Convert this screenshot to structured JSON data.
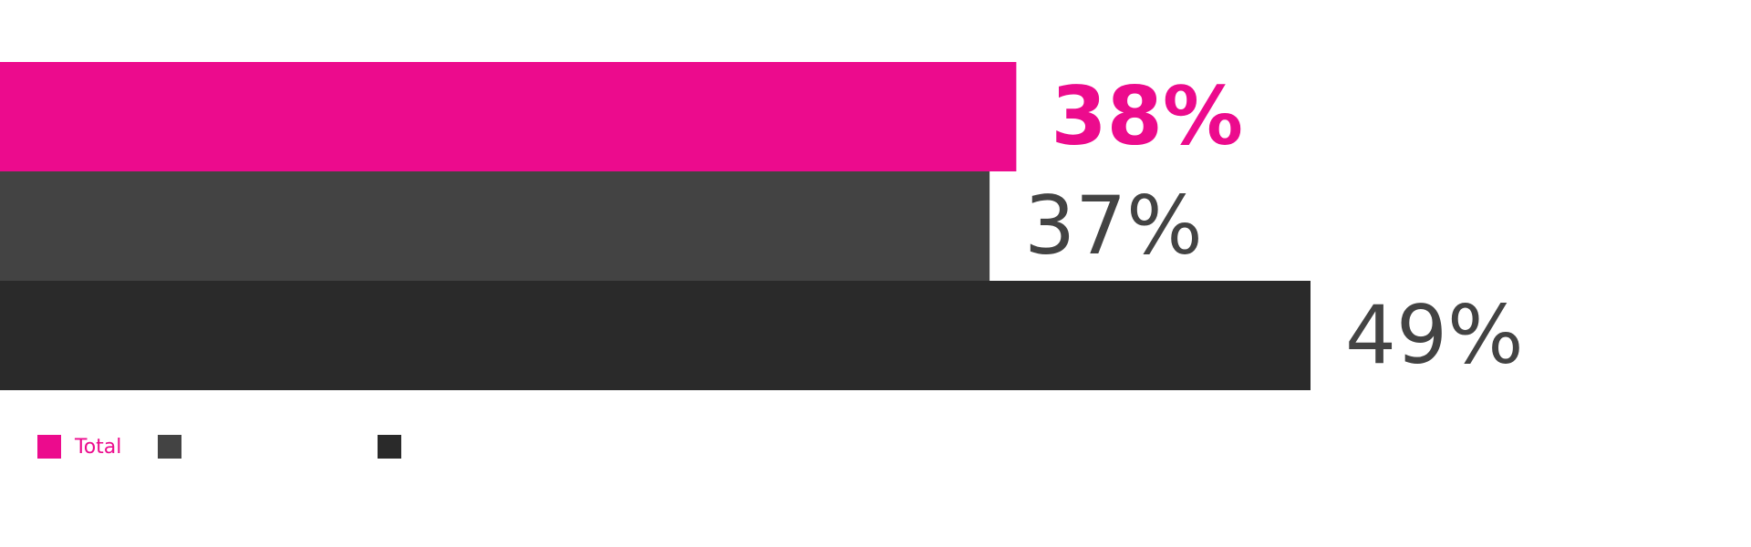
{
  "chart_data": {
    "type": "bar",
    "orientation": "horizontal",
    "xlim": [
      0,
      100
    ],
    "grid": false,
    "legend_position": "bottom-left",
    "series": [
      {
        "name": "Total",
        "value": 38,
        "label": "38%",
        "color": "#EC0B8D",
        "label_bold": true
      },
      {
        "value": 37,
        "label": "37%",
        "color": "#434343",
        "label_bold": false
      },
      {
        "value": 49,
        "label": "49%",
        "color": "#2A2A2A",
        "label_bold": false
      }
    ],
    "legend": [
      {
        "label": "Total",
        "color": "#EC0B8D",
        "text_color": "#EC0B8D"
      },
      {
        "label": "",
        "color": "#434343",
        "text_color": "#434343"
      },
      {
        "label": "",
        "color": "#2A2A2A",
        "text_color": "#2A2A2A"
      }
    ],
    "value_label_color": "#434343"
  }
}
